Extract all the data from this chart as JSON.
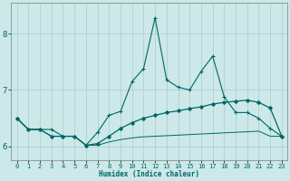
{
  "xlabel": "Humidex (Indice chaleur)",
  "xlim": [
    -0.5,
    23.5
  ],
  "ylim": [
    5.75,
    8.55
  ],
  "yticks": [
    6,
    7,
    8
  ],
  "xticks": [
    0,
    1,
    2,
    3,
    4,
    5,
    6,
    7,
    8,
    9,
    10,
    11,
    12,
    13,
    14,
    15,
    16,
    17,
    18,
    19,
    20,
    21,
    22,
    23
  ],
  "bg_color": "#cce8e8",
  "grid_color": "#aacccc",
  "line_color": "#006666",
  "series1_x": [
    0,
    1,
    2,
    3,
    4,
    5,
    6,
    7,
    8,
    9,
    10,
    11,
    12,
    13,
    14,
    15,
    16,
    17,
    18,
    19,
    20,
    21,
    22,
    23
  ],
  "series1_y": [
    6.5,
    6.3,
    6.3,
    6.3,
    6.18,
    6.18,
    6.02,
    6.25,
    6.55,
    6.62,
    7.15,
    7.38,
    8.28,
    7.18,
    7.05,
    7.0,
    7.33,
    7.6,
    6.88,
    6.6,
    6.6,
    6.5,
    6.32,
    6.18
  ],
  "series2_x": [
    0,
    1,
    2,
    3,
    4,
    5,
    6,
    7,
    8,
    9,
    10,
    11,
    12,
    13,
    14,
    15,
    16,
    17,
    18,
    19,
    20,
    21,
    22,
    23
  ],
  "series2_y": [
    6.5,
    6.3,
    6.3,
    6.18,
    6.18,
    6.18,
    6.02,
    6.05,
    6.18,
    6.32,
    6.42,
    6.5,
    6.55,
    6.6,
    6.63,
    6.67,
    6.7,
    6.75,
    6.78,
    6.8,
    6.82,
    6.78,
    6.68,
    6.18
  ],
  "series3_x": [
    0,
    1,
    2,
    3,
    4,
    5,
    6,
    7,
    8,
    9,
    10,
    11,
    12,
    13,
    14,
    15,
    16,
    17,
    18,
    19,
    20,
    21,
    22,
    23
  ],
  "series3_y": [
    6.5,
    6.3,
    6.3,
    6.18,
    6.18,
    6.18,
    6.02,
    6.02,
    6.08,
    6.12,
    6.15,
    6.17,
    6.18,
    6.19,
    6.2,
    6.21,
    6.22,
    6.23,
    6.24,
    6.25,
    6.26,
    6.27,
    6.18,
    6.18
  ]
}
